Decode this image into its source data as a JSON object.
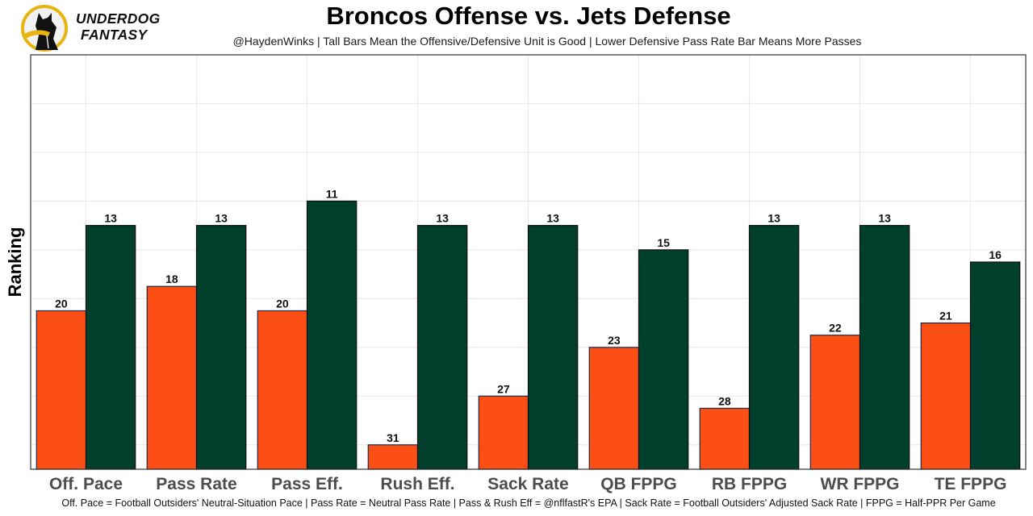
{
  "logo": {
    "line1": "UNDERDOG",
    "line2": "FANTASY",
    "icon": "underdog-dog-logo-icon"
  },
  "chart_data": {
    "type": "bar",
    "title": "Broncos Offense vs. Jets Defense",
    "subtitle": "@HaydenWinks | Tall Bars Mean the Offensive/Defensive Unit is Good | Lower Defensive Pass Rate Bar Means More Passes",
    "xlabel": "",
    "ylabel": "Ranking",
    "caption": "Off. Pace = Football Outsiders' Neutral-Situation Pace | Pass Rate = Neutral Pass Rate | Pass & Rush Eff = @nflfastR's EPA | Sack Rate = Football Outsiders' Adjusted Sack Rate | FPPG = Half-PPR Per Game",
    "categories": [
      "Off. Pace",
      "Pass Rate",
      "Pass Eff.",
      "Rush Eff.",
      "Sack Rate",
      "QB FPPG",
      "RB FPPG",
      "WR FPPG",
      "TE FPPG"
    ],
    "series": [
      {
        "name": "Broncos Offense",
        "color": "#fc4f15",
        "values": [
          20,
          18,
          20,
          31,
          27,
          23,
          28,
          22,
          21
        ]
      },
      {
        "name": "Jets Defense",
        "color": "#013f2d",
        "values": [
          13,
          13,
          11,
          13,
          13,
          15,
          13,
          13,
          16
        ]
      }
    ],
    "bar_height_rule": "bar height = 33 - rank (rank 1 tallest)",
    "ylim": [
      0,
      34
    ],
    "y_ticks_shown": false,
    "grid": true,
    "legend": "none"
  }
}
